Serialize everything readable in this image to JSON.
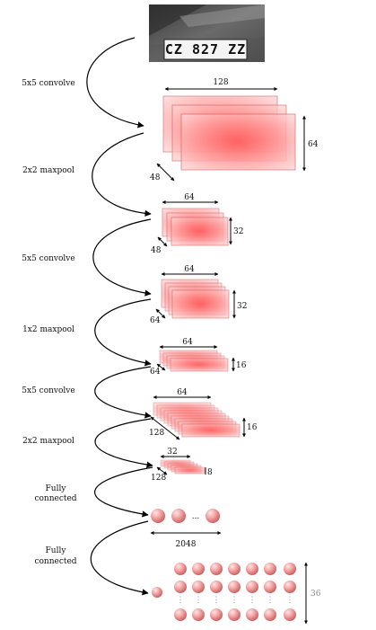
{
  "input_image": {
    "plate_text": "CZ 827 ZZ"
  },
  "operations": [
    {
      "label": "5x5 convolve"
    },
    {
      "label": "2x2 maxpool"
    },
    {
      "label": "5x5 convolve"
    },
    {
      "label": "1x2 maxpool"
    },
    {
      "label": "5x5 convolve"
    },
    {
      "label": "2x2 maxpool"
    },
    {
      "label_line1": "Fully",
      "label_line2": "connected"
    },
    {
      "label_line1": "Fully",
      "label_line2": "connected"
    }
  ],
  "layers": [
    {
      "width": "128",
      "height": "64",
      "depth": "48"
    },
    {
      "width": "64",
      "height": "32",
      "depth": "48"
    },
    {
      "width": "64",
      "height": "32",
      "depth": "64"
    },
    {
      "width": "64",
      "height": "16",
      "depth": "64"
    },
    {
      "width": "64",
      "height": "16",
      "depth": "128"
    },
    {
      "width": "32",
      "height": "8",
      "depth": "128"
    }
  ],
  "dense_layer": {
    "units": "2048",
    "ellipsis": "..."
  },
  "output_layer": {
    "rows": "36",
    "ellipsis": "⋮"
  },
  "colors": {
    "feature_fill": "#f79a9a",
    "feature_stroke": "#e05050",
    "neuron": "#f1a0a0"
  }
}
